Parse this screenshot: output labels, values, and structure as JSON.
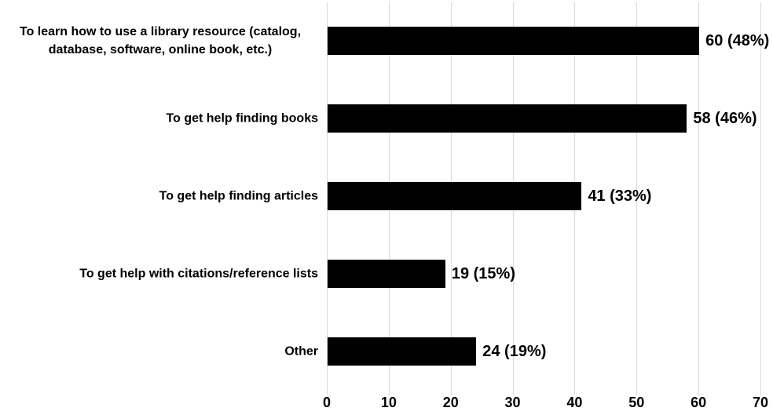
{
  "chart_data": {
    "type": "bar",
    "orientation": "horizontal",
    "categories": [
      "To learn how to use a library resource (catalog, database, software, online book, etc.)",
      "To get help finding books",
      "To get help finding articles",
      "To get help with citations/reference lists",
      "Other"
    ],
    "values": [
      60,
      58,
      41,
      19,
      24
    ],
    "percents": [
      48,
      46,
      33,
      15,
      19
    ],
    "data_labels": [
      "60 (48%)",
      "58 (46%)",
      "41 (33%)",
      "19 (15%)",
      "24 (19%)"
    ],
    "x_ticks": [
      0,
      10,
      20,
      30,
      40,
      50,
      60,
      70
    ],
    "xlim": [
      0,
      70
    ],
    "xlabel": "",
    "ylabel": "",
    "grid": "vertical-gridlines-on",
    "legend_position": "none",
    "bar_color": "#000000",
    "gridline_color": "#d9d9d9",
    "label_color": "#000000"
  }
}
